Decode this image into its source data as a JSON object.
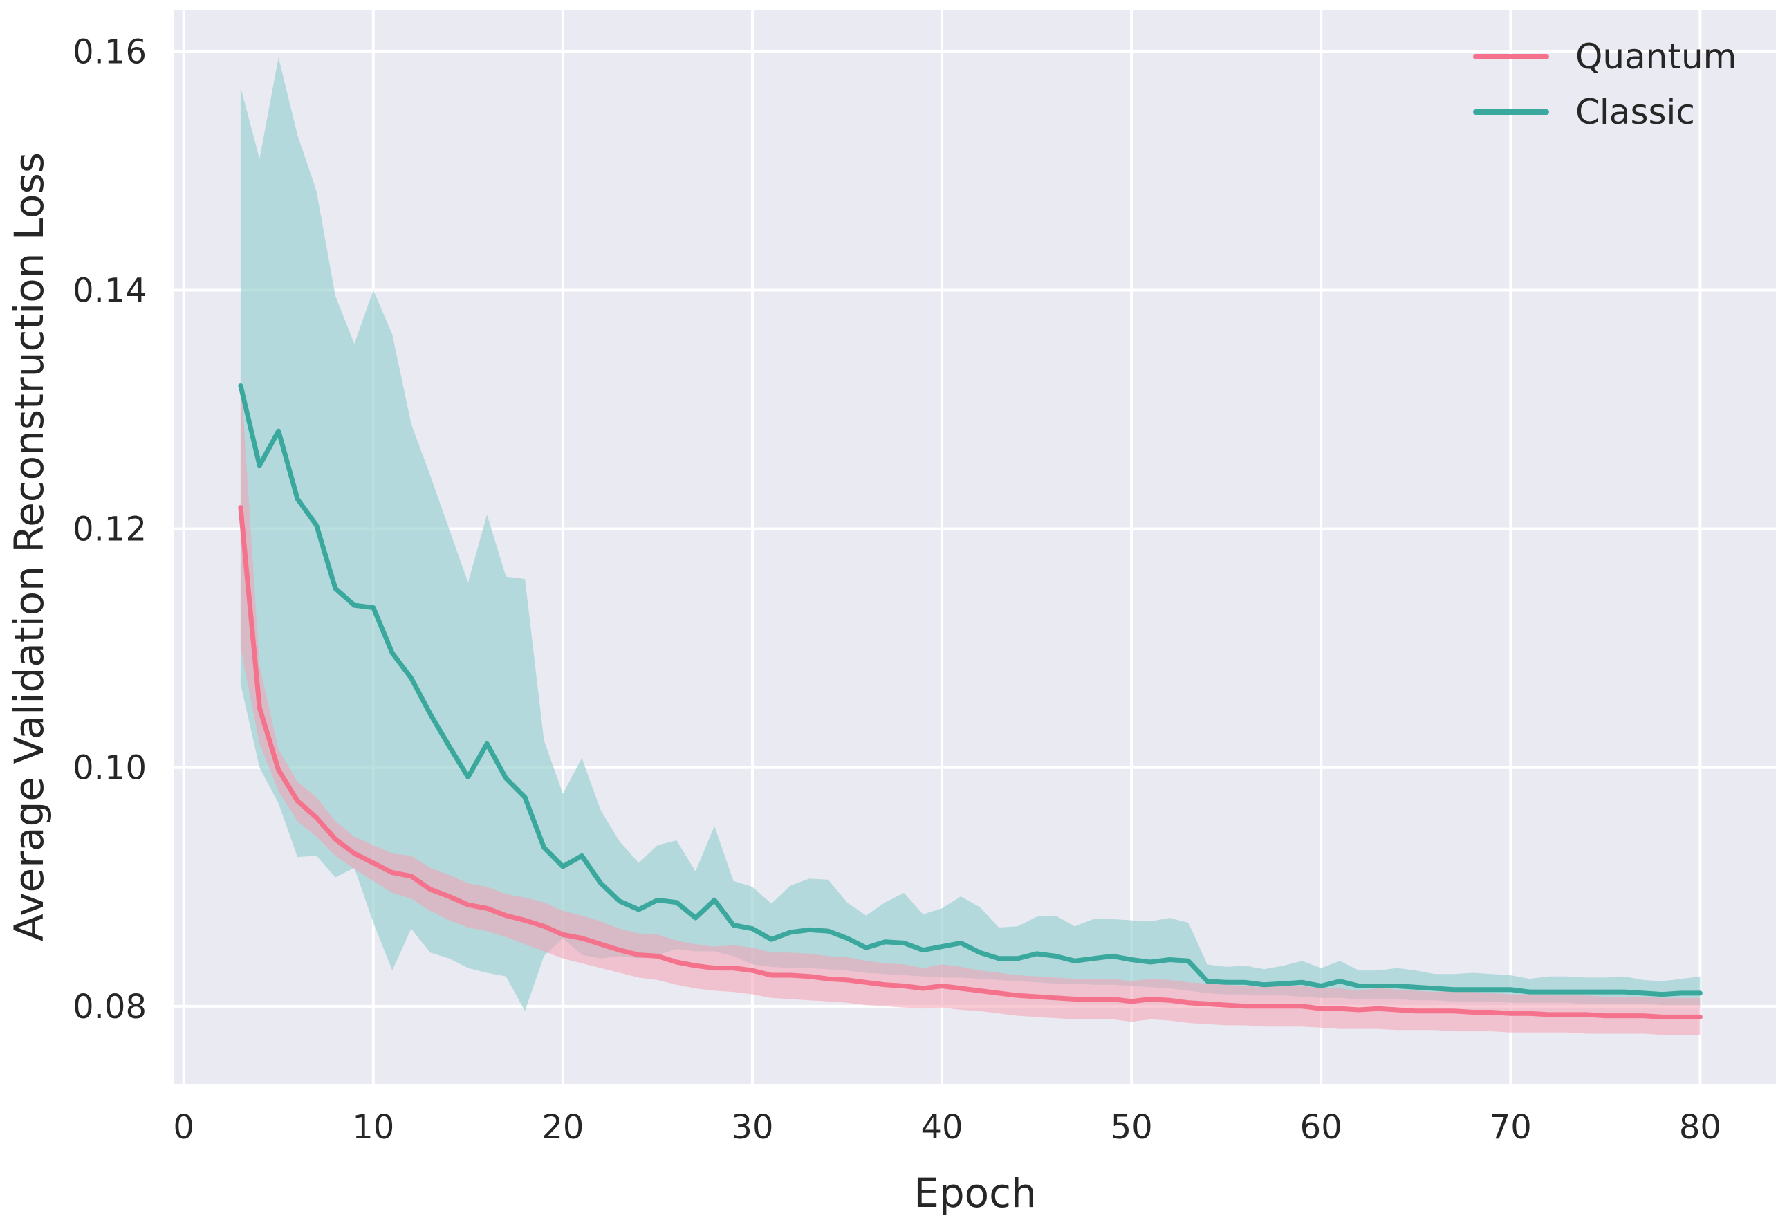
{
  "chart_data": {
    "type": "line",
    "title": "",
    "xlabel": "Epoch",
    "ylabel": "Average Validation Reconstruction Loss",
    "xlim": [
      -0.5,
      84
    ],
    "ylim": [
      0.0735,
      0.1635
    ],
    "xticks": [
      0,
      10,
      20,
      30,
      40,
      50,
      60,
      70,
      80
    ],
    "yticks": [
      0.08,
      0.1,
      0.12,
      0.14,
      0.16
    ],
    "xtick_labels": [
      "0",
      "10",
      "20",
      "30",
      "40",
      "50",
      "60",
      "70",
      "80"
    ],
    "ytick_labels": [
      "0.08",
      "0.10",
      "0.12",
      "0.14",
      "0.16"
    ],
    "grid": true,
    "legend_position": "top-right",
    "x": [
      3,
      4,
      5,
      6,
      7,
      8,
      9,
      10,
      11,
      12,
      13,
      14,
      15,
      16,
      17,
      18,
      19,
      20,
      21,
      22,
      23,
      24,
      25,
      26,
      27,
      28,
      29,
      30,
      31,
      32,
      33,
      34,
      35,
      36,
      37,
      38,
      39,
      40,
      41,
      42,
      43,
      44,
      45,
      46,
      47,
      48,
      49,
      50,
      51,
      52,
      53,
      54,
      55,
      56,
      57,
      58,
      59,
      60,
      61,
      62,
      63,
      64,
      65,
      66,
      67,
      68,
      69,
      70,
      71,
      72,
      73,
      74,
      75,
      76,
      77,
      78,
      79,
      80
    ],
    "series": [
      {
        "name": "Quantum",
        "color": "#f4728b",
        "band_color": "#f4a0b3",
        "values": [
          0.1218,
          0.105,
          0.0998,
          0.0972,
          0.0958,
          0.094,
          0.0928,
          0.092,
          0.0912,
          0.0909,
          0.0898,
          0.0892,
          0.0885,
          0.0882,
          0.0876,
          0.0872,
          0.0867,
          0.086,
          0.0857,
          0.0852,
          0.0847,
          0.0843,
          0.0842,
          0.0837,
          0.0834,
          0.0832,
          0.0832,
          0.083,
          0.0826,
          0.0826,
          0.0825,
          0.0823,
          0.0822,
          0.082,
          0.0818,
          0.0817,
          0.0815,
          0.0817,
          0.0815,
          0.0813,
          0.0811,
          0.0809,
          0.0808,
          0.0807,
          0.0806,
          0.0806,
          0.0806,
          0.0804,
          0.0806,
          0.0805,
          0.0803,
          0.0802,
          0.0801,
          0.08,
          0.08,
          0.08,
          0.08,
          0.0798,
          0.0798,
          0.0797,
          0.0798,
          0.0797,
          0.0796,
          0.0796,
          0.0796,
          0.0795,
          0.0795,
          0.0794,
          0.0794,
          0.0793,
          0.0793,
          0.0793,
          0.0792,
          0.0792,
          0.0792,
          0.0791,
          0.0791,
          0.0791
        ],
        "lower": [
          0.11,
          0.102,
          0.098,
          0.0955,
          0.0942,
          0.0926,
          0.0915,
          0.0905,
          0.0895,
          0.089,
          0.088,
          0.0872,
          0.0866,
          0.0863,
          0.0858,
          0.0852,
          0.0846,
          0.084,
          0.0836,
          0.0832,
          0.0828,
          0.0824,
          0.0822,
          0.0818,
          0.0815,
          0.0813,
          0.0812,
          0.081,
          0.0807,
          0.0806,
          0.0805,
          0.0804,
          0.0803,
          0.0801,
          0.08,
          0.0799,
          0.0798,
          0.0799,
          0.0797,
          0.0796,
          0.0794,
          0.0792,
          0.0791,
          0.079,
          0.0789,
          0.0789,
          0.0789,
          0.0787,
          0.0789,
          0.0788,
          0.0786,
          0.0785,
          0.0784,
          0.0784,
          0.0783,
          0.0783,
          0.0783,
          0.0782,
          0.0781,
          0.0781,
          0.0781,
          0.078,
          0.078,
          0.078,
          0.0779,
          0.0779,
          0.0779,
          0.0778,
          0.0778,
          0.0778,
          0.0778,
          0.0777,
          0.0777,
          0.0777,
          0.0777,
          0.0776,
          0.0776,
          0.0776
        ],
        "upper": [
          0.133,
          0.1085,
          0.1015,
          0.0988,
          0.0975,
          0.0955,
          0.0942,
          0.0935,
          0.0928,
          0.0926,
          0.0916,
          0.091,
          0.0903,
          0.09,
          0.0894,
          0.0891,
          0.0887,
          0.088,
          0.0876,
          0.0871,
          0.0865,
          0.0861,
          0.086,
          0.0855,
          0.0852,
          0.085,
          0.0851,
          0.0849,
          0.0845,
          0.0845,
          0.0844,
          0.0842,
          0.0841,
          0.0838,
          0.0836,
          0.0835,
          0.0832,
          0.0835,
          0.0833,
          0.083,
          0.0828,
          0.0826,
          0.0825,
          0.0824,
          0.0823,
          0.0823,
          0.0823,
          0.0821,
          0.0823,
          0.0822,
          0.082,
          0.0819,
          0.0818,
          0.0817,
          0.0816,
          0.0817,
          0.0817,
          0.0815,
          0.0815,
          0.0813,
          0.0815,
          0.0814,
          0.0813,
          0.0812,
          0.0813,
          0.0812,
          0.0811,
          0.081,
          0.081,
          0.0809,
          0.0809,
          0.0809,
          0.0808,
          0.0808,
          0.0808,
          0.0807,
          0.0807,
          0.0807
        ]
      },
      {
        "name": "Classic",
        "color": "#3aa89c",
        "band_color": "#9fd2d3",
        "values": [
          0.132,
          0.1253,
          0.1282,
          0.1225,
          0.1203,
          0.115,
          0.1136,
          0.1134,
          0.1096,
          0.1075,
          0.1045,
          0.1018,
          0.0992,
          0.102,
          0.0991,
          0.0975,
          0.0933,
          0.0917,
          0.0926,
          0.0903,
          0.0888,
          0.0881,
          0.0889,
          0.0887,
          0.0874,
          0.0889,
          0.0868,
          0.0865,
          0.0856,
          0.0862,
          0.0864,
          0.0863,
          0.0857,
          0.0849,
          0.0854,
          0.0853,
          0.0847,
          0.085,
          0.0853,
          0.0845,
          0.084,
          0.084,
          0.0844,
          0.0842,
          0.0838,
          0.084,
          0.0842,
          0.0839,
          0.0837,
          0.0839,
          0.0838,
          0.0821,
          0.082,
          0.082,
          0.0818,
          0.0819,
          0.082,
          0.0817,
          0.0821,
          0.0817,
          0.0817,
          0.0817,
          0.0816,
          0.0815,
          0.0814,
          0.0814,
          0.0814,
          0.0814,
          0.0812,
          0.0812,
          0.0812,
          0.0812,
          0.0812,
          0.0812,
          0.0811,
          0.081,
          0.0811,
          0.0811
        ],
        "lower": [
          0.107,
          0.1,
          0.097,
          0.0925,
          0.0926,
          0.0908,
          0.0916,
          0.087,
          0.083,
          0.0865,
          0.0845,
          0.084,
          0.0832,
          0.0828,
          0.0825,
          0.0796,
          0.0842,
          0.0857,
          0.0843,
          0.084,
          0.0842,
          0.084,
          0.0843,
          0.0848,
          0.0846,
          0.0846,
          0.0842,
          0.0835,
          0.0833,
          0.0832,
          0.0832,
          0.0831,
          0.083,
          0.0828,
          0.0827,
          0.0826,
          0.0825,
          0.0824,
          0.0824,
          0.0823,
          0.0822,
          0.0821,
          0.082,
          0.0819,
          0.0819,
          0.0818,
          0.0818,
          0.0817,
          0.0816,
          0.0815,
          0.0813,
          0.0811,
          0.081,
          0.081,
          0.0809,
          0.0809,
          0.0808,
          0.0807,
          0.0807,
          0.0806,
          0.0806,
          0.0806,
          0.0805,
          0.0805,
          0.0804,
          0.0804,
          0.0804,
          0.0803,
          0.0803,
          0.0803,
          0.0803,
          0.0802,
          0.0802,
          0.0802,
          0.0802,
          0.0801,
          0.0801,
          0.0801
        ],
        "upper": [
          0.157,
          0.151,
          0.1595,
          0.153,
          0.1483,
          0.1395,
          0.1355,
          0.14,
          0.1363,
          0.1288,
          0.1245,
          0.12,
          0.1155,
          0.1212,
          0.116,
          0.1158,
          0.1023,
          0.0978,
          0.1008,
          0.0964,
          0.0938,
          0.092,
          0.0935,
          0.0939,
          0.0913,
          0.0951,
          0.0905,
          0.09,
          0.0886,
          0.0901,
          0.0907,
          0.0906,
          0.0887,
          0.0876,
          0.0887,
          0.0895,
          0.0877,
          0.0882,
          0.0892,
          0.0883,
          0.0866,
          0.0867,
          0.0875,
          0.0876,
          0.0867,
          0.0873,
          0.0873,
          0.0872,
          0.0871,
          0.0874,
          0.087,
          0.0835,
          0.0833,
          0.0834,
          0.0831,
          0.0834,
          0.0838,
          0.0832,
          0.0838,
          0.083,
          0.083,
          0.0832,
          0.083,
          0.0827,
          0.0827,
          0.0828,
          0.0827,
          0.0826,
          0.0823,
          0.0825,
          0.0825,
          0.0824,
          0.0824,
          0.0825,
          0.0822,
          0.0821,
          0.0823,
          0.0825
        ]
      }
    ]
  }
}
